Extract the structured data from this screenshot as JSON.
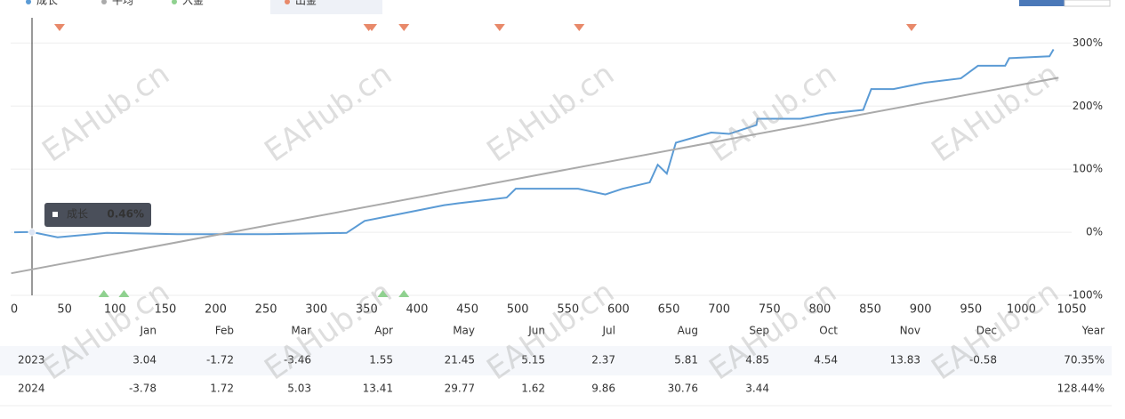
{
  "chart_data": {
    "type": "line",
    "legend": [
      "成长",
      "平均",
      "入金",
      "出金"
    ],
    "series": [
      {
        "name": "成长",
        "color": "#5b9bd5",
        "x": [
          0,
          17,
          43,
          92,
          162,
          251,
          330,
          348,
          383,
          427,
          441,
          463,
          489,
          498,
          560,
          587,
          604,
          631,
          639,
          648,
          657,
          692,
          710,
          737,
          738,
          781,
          807,
          843,
          851,
          873,
          904,
          940,
          957,
          984,
          988,
          1028,
          1032
        ],
        "values": [
          0,
          0.46,
          -8,
          -1,
          -3,
          -3,
          -1,
          18,
          29,
          43,
          46,
          50,
          55,
          69,
          69,
          60,
          69,
          79,
          107,
          93,
          142,
          158,
          156,
          170,
          180,
          180,
          188,
          194,
          227,
          227,
          237,
          244,
          264,
          264,
          276,
          279,
          290
        ]
      },
      {
        "name": "平均",
        "color": "#aaaaaa",
        "x": [
          -3,
          1037
        ],
        "values": [
          -65,
          245
        ]
      },
      {
        "name": "入金",
        "color": "#8fd18f",
        "x": [
          89,
          109,
          366,
          387
        ]
      },
      {
        "name": "出金",
        "color": "#e8896a",
        "x": [
          45,
          352,
          355,
          387,
          482,
          561,
          891
        ]
      }
    ],
    "xlim": [
      0,
      1050
    ],
    "xticks": [
      0,
      50,
      100,
      150,
      200,
      250,
      300,
      350,
      400,
      450,
      500,
      550,
      600,
      650,
      700,
      750,
      800,
      850,
      900,
      950,
      1000,
      1050
    ],
    "ylim": [
      -100,
      340
    ],
    "yticks": [
      {
        "value": -100,
        "label": "-100%"
      },
      {
        "value": 0,
        "label": "0%"
      },
      {
        "value": 100,
        "label": "100%"
      },
      {
        "value": 200,
        "label": "200%"
      },
      {
        "value": 300,
        "label": "300%"
      }
    ],
    "grid": true,
    "tooltip": {
      "name": "成长",
      "text": "0.46%"
    }
  },
  "watermark": "EAHub.cn",
  "table": {
    "header": [
      "Jan",
      "Feb",
      "Mar",
      "Apr",
      "May",
      "Jun",
      "Jul",
      "Aug",
      "Sep",
      "Oct",
      "Nov",
      "Dec",
      "Year"
    ],
    "rows": [
      [
        "2023",
        "3.04",
        "-1.72",
        "-3.46",
        "1.55",
        "21.45",
        "5.15",
        "2.37",
        "5.81",
        "4.85",
        "4.54",
        "13.83",
        "-0.58",
        "70.35%"
      ],
      [
        "2024",
        "-3.78",
        "1.72",
        "5.03",
        "13.41",
        "29.77",
        "1.62",
        "9.86",
        "30.76",
        "3.44",
        "",
        "",
        "",
        "128.44%"
      ]
    ]
  }
}
